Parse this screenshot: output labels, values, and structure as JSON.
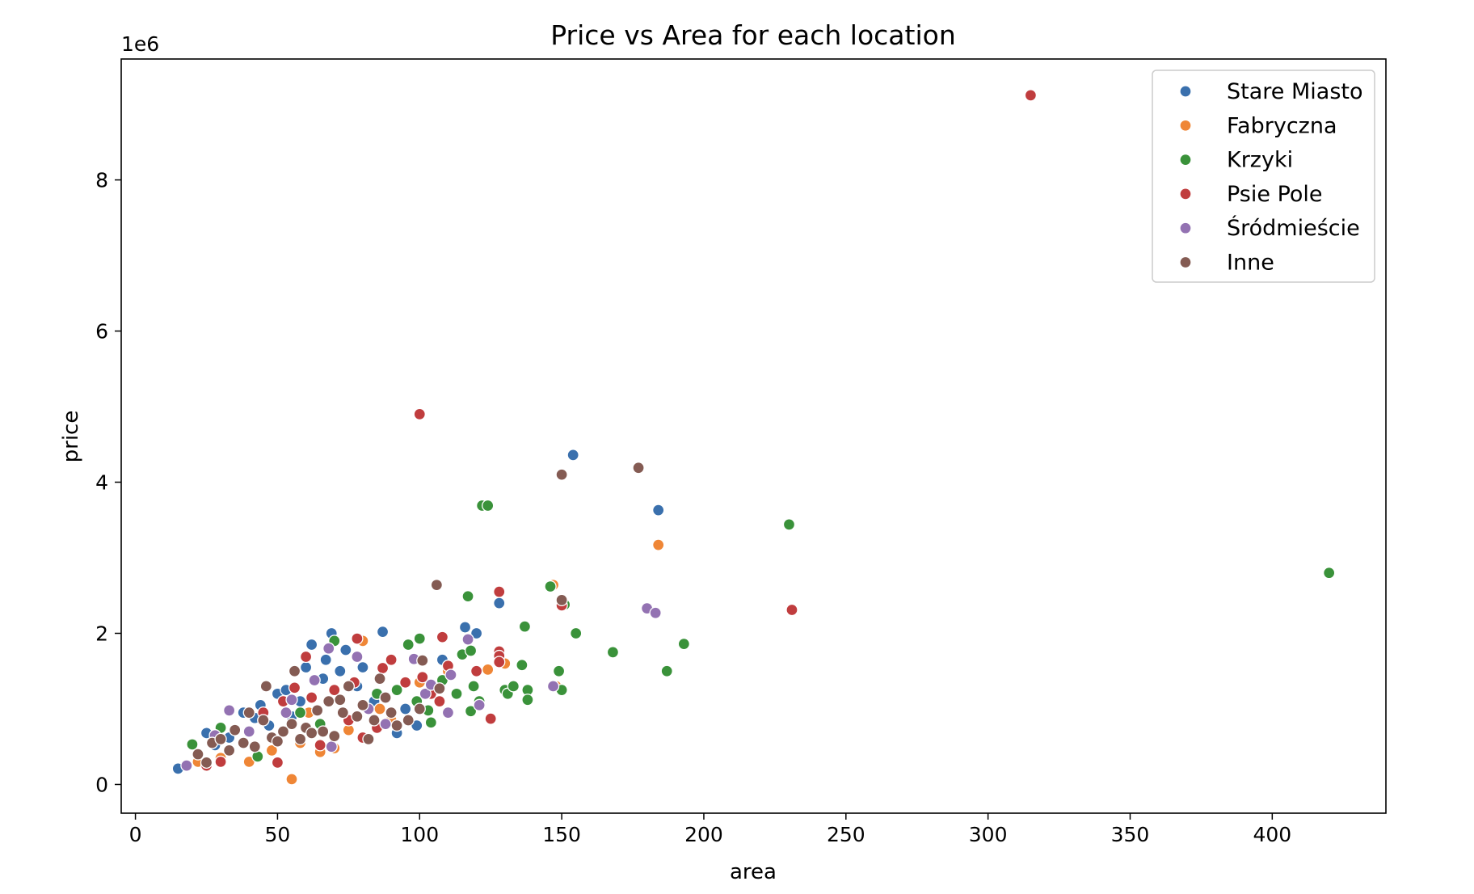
{
  "chart_data": {
    "type": "scatter",
    "title": "Price vs Area for each location",
    "xlabel": "area",
    "ylabel": "price",
    "y_offset_label": "1e6",
    "xlim": [
      -5,
      440
    ],
    "ylim": [
      -0.38,
      9.6
    ],
    "x_ticks": [
      0,
      50,
      100,
      150,
      200,
      250,
      300,
      350,
      400
    ],
    "y_ticks": [
      0,
      2,
      4,
      6,
      8
    ],
    "legend_position": "top-right",
    "grid": false,
    "series": [
      {
        "name": "Stare Miasto",
        "color": "#3a70ad",
        "points": [
          [
            15,
            0.21
          ],
          [
            25,
            0.68
          ],
          [
            28,
            0.52
          ],
          [
            33,
            0.62
          ],
          [
            38,
            0.95
          ],
          [
            42,
            0.88
          ],
          [
            44,
            1.05
          ],
          [
            47,
            0.78
          ],
          [
            50,
            1.2
          ],
          [
            53,
            1.25
          ],
          [
            55,
            0.9
          ],
          [
            58,
            1.1
          ],
          [
            60,
            1.55
          ],
          [
            62,
            1.85
          ],
          [
            66,
            1.4
          ],
          [
            67,
            1.65
          ],
          [
            69,
            2.0
          ],
          [
            72,
            1.5
          ],
          [
            74,
            1.78
          ],
          [
            78,
            1.3
          ],
          [
            80,
            1.55
          ],
          [
            84,
            1.1
          ],
          [
            87,
            2.02
          ],
          [
            92,
            0.68
          ],
          [
            95,
            1.0
          ],
          [
            99,
            0.78
          ],
          [
            108,
            1.65
          ],
          [
            116,
            2.08
          ],
          [
            120,
            2.0
          ],
          [
            128,
            2.4
          ],
          [
            154,
            4.36
          ],
          [
            184,
            3.63
          ]
        ]
      },
      {
        "name": "Fabryczna",
        "color": "#ef8636",
        "points": [
          [
            22,
            0.3
          ],
          [
            30,
            0.35
          ],
          [
            40,
            0.3
          ],
          [
            48,
            0.45
          ],
          [
            55,
            0.07
          ],
          [
            58,
            0.55
          ],
          [
            61,
            0.95
          ],
          [
            65,
            0.43
          ],
          [
            70,
            0.48
          ],
          [
            75,
            0.72
          ],
          [
            80,
            1.9
          ],
          [
            86,
            1.0
          ],
          [
            90,
            0.85
          ],
          [
            100,
            1.35
          ],
          [
            110,
            1.5
          ],
          [
            124,
            1.52
          ],
          [
            130,
            1.6
          ],
          [
            147,
            2.64
          ],
          [
            148,
            1.3
          ],
          [
            184,
            3.17
          ]
        ]
      },
      {
        "name": "Krzyki",
        "color": "#3a923a",
        "points": [
          [
            20,
            0.53
          ],
          [
            30,
            0.75
          ],
          [
            43,
            0.37
          ],
          [
            58,
            0.95
          ],
          [
            65,
            0.8
          ],
          [
            70,
            1.9
          ],
          [
            85,
            1.2
          ],
          [
            92,
            1.25
          ],
          [
            96,
            1.85
          ],
          [
            99,
            1.1
          ],
          [
            100,
            1.93
          ],
          [
            103,
            0.98
          ],
          [
            104,
            0.82
          ],
          [
            108,
            1.38
          ],
          [
            113,
            1.2
          ],
          [
            115,
            1.72
          ],
          [
            117,
            2.49
          ],
          [
            118,
            1.77
          ],
          [
            118,
            0.97
          ],
          [
            119,
            1.3
          ],
          [
            121,
            1.1
          ],
          [
            122,
            3.69
          ],
          [
            124,
            3.69
          ],
          [
            130,
            1.25
          ],
          [
            131,
            1.2
          ],
          [
            133,
            1.3
          ],
          [
            136,
            1.58
          ],
          [
            137,
            2.09
          ],
          [
            138,
            1.25
          ],
          [
            138,
            1.12
          ],
          [
            146,
            2.62
          ],
          [
            149,
            1.5
          ],
          [
            150,
            1.25
          ],
          [
            151,
            2.38
          ],
          [
            155,
            2.0
          ],
          [
            168,
            1.75
          ],
          [
            187,
            1.5
          ],
          [
            193,
            1.86
          ],
          [
            230,
            3.44
          ],
          [
            420,
            2.8
          ]
        ]
      },
      {
        "name": "Psie Pole",
        "color": "#c03d3e",
        "points": [
          [
            25,
            0.25
          ],
          [
            30,
            0.3
          ],
          [
            45,
            0.95
          ],
          [
            50,
            0.29
          ],
          [
            52,
            1.1
          ],
          [
            56,
            1.28
          ],
          [
            60,
            1.69
          ],
          [
            62,
            1.15
          ],
          [
            65,
            0.52
          ],
          [
            70,
            1.25
          ],
          [
            75,
            0.85
          ],
          [
            77,
            1.35
          ],
          [
            78,
            1.93
          ],
          [
            80,
            0.62
          ],
          [
            85,
            0.75
          ],
          [
            87,
            1.54
          ],
          [
            90,
            1.65
          ],
          [
            95,
            1.35
          ],
          [
            100,
            4.9
          ],
          [
            101,
            1.42
          ],
          [
            104,
            1.2
          ],
          [
            107,
            1.1
          ],
          [
            108,
            1.95
          ],
          [
            110,
            1.57
          ],
          [
            120,
            1.5
          ],
          [
            125,
            0.87
          ],
          [
            128,
            2.55
          ],
          [
            128,
            1.76
          ],
          [
            128,
            1.7
          ],
          [
            128,
            1.62
          ],
          [
            150,
            2.37
          ],
          [
            231,
            2.31
          ],
          [
            315,
            9.12
          ]
        ]
      },
      {
        "name": "Śródmieście",
        "color": "#9372b2",
        "points": [
          [
            18,
            0.25
          ],
          [
            28,
            0.65
          ],
          [
            33,
            0.98
          ],
          [
            40,
            0.7
          ],
          [
            45,
            0.85
          ],
          [
            53,
            0.95
          ],
          [
            55,
            1.12
          ],
          [
            63,
            1.38
          ],
          [
            68,
            1.8
          ],
          [
            69,
            0.5
          ],
          [
            73,
            0.95
          ],
          [
            78,
            1.69
          ],
          [
            82,
            1.0
          ],
          [
            88,
            0.8
          ],
          [
            98,
            1.66
          ],
          [
            102,
            1.2
          ],
          [
            104,
            1.32
          ],
          [
            110,
            0.95
          ],
          [
            111,
            1.45
          ],
          [
            117,
            1.92
          ],
          [
            121,
            1.05
          ],
          [
            147,
            1.3
          ],
          [
            180,
            2.33
          ],
          [
            183,
            2.27
          ]
        ]
      },
      {
        "name": "Inne",
        "color": "#845b53",
        "points": [
          [
            22,
            0.4
          ],
          [
            25,
            0.29
          ],
          [
            27,
            0.55
          ],
          [
            30,
            0.6
          ],
          [
            33,
            0.45
          ],
          [
            35,
            0.72
          ],
          [
            38,
            0.55
          ],
          [
            40,
            0.95
          ],
          [
            42,
            0.5
          ],
          [
            45,
            0.85
          ],
          [
            46,
            1.3
          ],
          [
            48,
            0.62
          ],
          [
            50,
            0.57
          ],
          [
            52,
            0.7
          ],
          [
            55,
            0.8
          ],
          [
            56,
            1.5
          ],
          [
            58,
            0.6
          ],
          [
            60,
            0.75
          ],
          [
            62,
            0.68
          ],
          [
            64,
            0.98
          ],
          [
            66,
            0.7
          ],
          [
            68,
            1.1
          ],
          [
            70,
            0.64
          ],
          [
            72,
            1.12
          ],
          [
            73,
            0.95
          ],
          [
            75,
            1.3
          ],
          [
            78,
            0.9
          ],
          [
            80,
            1.05
          ],
          [
            82,
            0.6
          ],
          [
            84,
            0.85
          ],
          [
            86,
            1.4
          ],
          [
            88,
            1.15
          ],
          [
            90,
            0.95
          ],
          [
            92,
            0.78
          ],
          [
            96,
            0.85
          ],
          [
            100,
            1.0
          ],
          [
            101,
            1.64
          ],
          [
            106,
            2.64
          ],
          [
            107,
            1.27
          ],
          [
            150,
            2.44
          ],
          [
            150,
            4.1
          ],
          [
            177,
            4.19
          ]
        ]
      }
    ]
  }
}
